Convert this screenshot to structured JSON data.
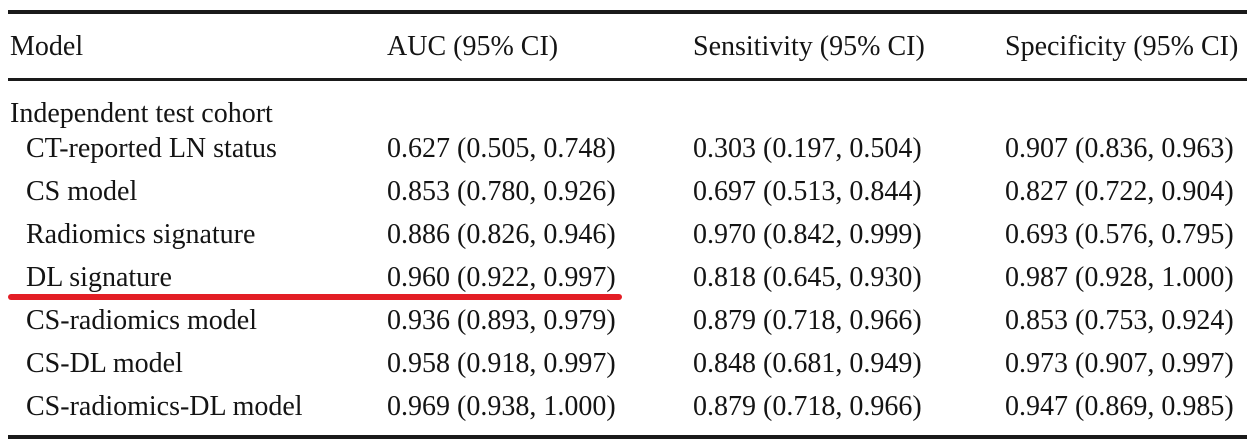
{
  "table": {
    "columns": [
      "Model",
      "AUC (95% CI)",
      "Sensitivity (95% CI)",
      "Specificity (95% CI)"
    ],
    "section": "Independent test cohort",
    "rows": [
      {
        "model": "CT-reported LN status",
        "auc": "0.627 (0.505, 0.748)",
        "sensitivity": "0.303 (0.197, 0.504)",
        "specificity": "0.907 (0.836, 0.963)"
      },
      {
        "model": "CS model",
        "auc": "0.853 (0.780, 0.926)",
        "sensitivity": "0.697 (0.513, 0.844)",
        "specificity": "0.827 (0.722, 0.904)"
      },
      {
        "model": "Radiomics signature",
        "auc": "0.886 (0.826, 0.946)",
        "sensitivity": "0.970 (0.842, 0.999)",
        "specificity": "0.693 (0.576, 0.795)"
      },
      {
        "model": "DL signature",
        "auc": "0.960 (0.922, 0.997)",
        "sensitivity": "0.818 (0.645, 0.930)",
        "specificity": "0.987 (0.928, 1.000)"
      },
      {
        "model": "CS-radiomics model",
        "auc": "0.936 (0.893, 0.979)",
        "sensitivity": "0.879 (0.718, 0.966)",
        "specificity": "0.853 (0.753, 0.924)"
      },
      {
        "model": "CS-DL model",
        "auc": "0.958 (0.918, 0.997)",
        "sensitivity": "0.848 (0.681, 0.949)",
        "specificity": "0.973 (0.907, 0.997)"
      },
      {
        "model": "CS-radiomics-DL model",
        "auc": "0.969 (0.938, 1.000)",
        "sensitivity": "0.879 (0.718, 0.966)",
        "specificity": "0.947 (0.869, 0.985)"
      }
    ],
    "annotation": {
      "type": "red-underline",
      "highlighted_row": "DL signature",
      "color": "#e31e25"
    }
  },
  "colors": {
    "background": "#ffffff",
    "text": "#141414",
    "rule": "#1a1a1a",
    "highlight": "#e31e25"
  }
}
